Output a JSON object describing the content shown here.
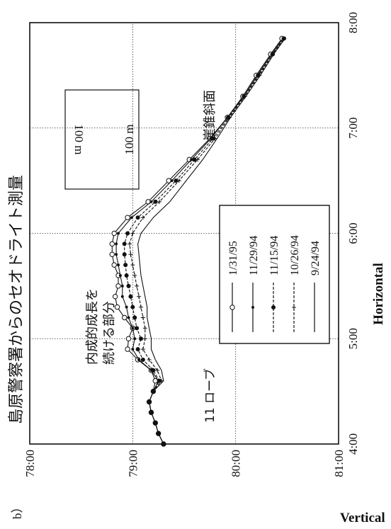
{
  "panel_label": "b）",
  "chart_data": {
    "type": "line",
    "title": "島原警察署からのセオドライト測量",
    "xlabel": "Horizontal",
    "ylabel": "Vertical",
    "xlim": [
      "4:00",
      "8:00"
    ],
    "ylim": [
      "78:00",
      "81:00"
    ],
    "x_ticks": [
      "4:00",
      "5:00",
      "6:00",
      "7:00",
      "8:00"
    ],
    "y_ticks": [
      "78:00",
      "79:00",
      "80:00",
      "81:00"
    ],
    "y_inverted": true,
    "grid": "dotted",
    "legend_position": "lower-right",
    "annotations": {
      "lobe": "11 ローブ",
      "endogenous": [
        "内成的成長を",
        "続ける部分"
      ],
      "talus": "崖錐斜面",
      "scale_top": "100 m",
      "scale_bottom": "100 m"
    },
    "series": [
      {
        "name": "1/31/95",
        "marker": "open-circle",
        "style": "solid",
        "points": [
          [
            4.0,
            79.3
          ],
          [
            4.1,
            79.25
          ],
          [
            4.2,
            79.22
          ],
          [
            4.3,
            79.18
          ],
          [
            4.4,
            79.16
          ],
          [
            4.5,
            79.2
          ],
          [
            4.6,
            79.22
          ],
          [
            4.7,
            79.18
          ],
          [
            4.8,
            79.05
          ],
          [
            4.9,
            78.95
          ],
          [
            5.0,
            78.96
          ],
          [
            5.1,
            79.0
          ],
          [
            5.2,
            78.92
          ],
          [
            5.3,
            78.85
          ],
          [
            5.4,
            78.83
          ],
          [
            5.5,
            78.86
          ],
          [
            5.6,
            78.86
          ],
          [
            5.7,
            78.82
          ],
          [
            5.8,
            78.8
          ],
          [
            5.9,
            78.8
          ],
          [
            6.0,
            78.82
          ],
          [
            6.15,
            78.95
          ],
          [
            6.3,
            79.15
          ],
          [
            6.5,
            79.35
          ],
          [
            6.7,
            79.55
          ],
          [
            6.9,
            79.75
          ],
          [
            7.1,
            79.92
          ],
          [
            7.3,
            80.07
          ],
          [
            7.5,
            80.2
          ],
          [
            7.7,
            80.34
          ],
          [
            7.85,
            80.45
          ]
        ]
      },
      {
        "name": "11/29/94",
        "marker": "filled-small",
        "style": "solid",
        "points": [
          [
            4.0,
            79.3
          ],
          [
            4.1,
            79.25
          ],
          [
            4.2,
            79.22
          ],
          [
            4.3,
            79.18
          ],
          [
            4.4,
            79.16
          ],
          [
            4.5,
            79.2
          ],
          [
            4.6,
            79.25
          ],
          [
            4.7,
            79.18
          ],
          [
            4.8,
            79.06
          ],
          [
            4.9,
            79.0
          ],
          [
            5.0,
            79.02
          ],
          [
            5.1,
            79.0
          ],
          [
            5.2,
            78.96
          ],
          [
            5.3,
            78.94
          ],
          [
            5.4,
            78.9
          ],
          [
            5.5,
            78.9
          ],
          [
            5.6,
            78.88
          ],
          [
            5.7,
            78.86
          ],
          [
            5.8,
            78.84
          ],
          [
            5.9,
            78.84
          ],
          [
            6.0,
            78.86
          ],
          [
            6.15,
            78.99
          ],
          [
            6.3,
            79.18
          ],
          [
            6.5,
            79.38
          ],
          [
            6.7,
            79.57
          ],
          [
            6.9,
            79.76
          ],
          [
            7.1,
            79.92
          ],
          [
            7.3,
            80.08
          ],
          [
            7.5,
            80.21
          ],
          [
            7.7,
            80.35
          ],
          [
            7.85,
            80.46
          ]
        ]
      },
      {
        "name": "11/15/94",
        "marker": "filled-circle",
        "style": "dashed",
        "points": [
          [
            4.0,
            79.3
          ],
          [
            4.1,
            79.25
          ],
          [
            4.2,
            79.22
          ],
          [
            4.3,
            79.18
          ],
          [
            4.4,
            79.16
          ],
          [
            4.5,
            79.2
          ],
          [
            4.6,
            79.26
          ],
          [
            4.7,
            79.2
          ],
          [
            4.8,
            79.1
          ],
          [
            4.9,
            79.05
          ],
          [
            5.0,
            79.08
          ],
          [
            5.1,
            79.04
          ],
          [
            5.2,
            79.02
          ],
          [
            5.3,
            79.0
          ],
          [
            5.4,
            78.98
          ],
          [
            5.5,
            78.96
          ],
          [
            5.6,
            78.94
          ],
          [
            5.7,
            78.93
          ],
          [
            5.8,
            78.92
          ],
          [
            5.9,
            78.92
          ],
          [
            6.0,
            78.95
          ],
          [
            6.15,
            79.05
          ],
          [
            6.3,
            79.22
          ],
          [
            6.5,
            79.42
          ],
          [
            6.7,
            79.6
          ],
          [
            6.9,
            79.78
          ],
          [
            7.1,
            79.93
          ],
          [
            7.3,
            80.08
          ],
          [
            7.5,
            80.22
          ],
          [
            7.7,
            80.36
          ],
          [
            7.85,
            80.47
          ]
        ]
      },
      {
        "name": "10/26/94",
        "marker": "plus",
        "style": "dashed",
        "points": [
          [
            4.0,
            79.3
          ],
          [
            4.1,
            79.25
          ],
          [
            4.2,
            79.22
          ],
          [
            4.3,
            79.18
          ],
          [
            4.4,
            79.16
          ],
          [
            4.5,
            79.2
          ],
          [
            4.6,
            79.28
          ],
          [
            4.7,
            79.24
          ],
          [
            4.8,
            79.16
          ],
          [
            4.9,
            79.1
          ],
          [
            5.0,
            79.12
          ],
          [
            5.1,
            79.12
          ],
          [
            5.2,
            79.1
          ],
          [
            5.3,
            79.08
          ],
          [
            5.4,
            79.06
          ],
          [
            5.5,
            79.04
          ],
          [
            5.6,
            79.02
          ],
          [
            5.7,
            79.0
          ],
          [
            5.8,
            78.98
          ],
          [
            5.9,
            78.97
          ],
          [
            6.0,
            79.0
          ],
          [
            6.15,
            79.1
          ],
          [
            6.3,
            79.26
          ],
          [
            6.5,
            79.45
          ],
          [
            6.7,
            79.63
          ],
          [
            6.9,
            79.8
          ],
          [
            7.1,
            79.94
          ],
          [
            7.3,
            80.09
          ],
          [
            7.5,
            80.23
          ],
          [
            7.7,
            80.36
          ],
          [
            7.85,
            80.47
          ]
        ]
      },
      {
        "name": "9/24/94",
        "marker": "none",
        "style": "solid",
        "points": [
          [
            4.0,
            79.3
          ],
          [
            4.1,
            79.25
          ],
          [
            4.2,
            79.22
          ],
          [
            4.3,
            79.18
          ],
          [
            4.4,
            79.16
          ],
          [
            4.5,
            79.2
          ],
          [
            4.6,
            79.3
          ],
          [
            4.7,
            79.28
          ],
          [
            4.8,
            79.22
          ],
          [
            4.9,
            79.18
          ],
          [
            5.0,
            79.18
          ],
          [
            5.1,
            79.16
          ],
          [
            5.2,
            79.14
          ],
          [
            5.3,
            79.14
          ],
          [
            5.4,
            79.12
          ],
          [
            5.5,
            79.1
          ],
          [
            5.6,
            79.08
          ],
          [
            5.7,
            79.07
          ],
          [
            5.8,
            79.06
          ],
          [
            5.9,
            79.05
          ],
          [
            6.0,
            79.08
          ],
          [
            6.15,
            79.2
          ],
          [
            6.3,
            79.36
          ],
          [
            6.5,
            79.52
          ],
          [
            6.7,
            79.68
          ],
          [
            6.9,
            79.82
          ],
          [
            7.1,
            79.95
          ],
          [
            7.3,
            80.1
          ],
          [
            7.5,
            80.24
          ],
          [
            7.7,
            80.37
          ],
          [
            7.85,
            80.48
          ]
        ]
      }
    ]
  }
}
